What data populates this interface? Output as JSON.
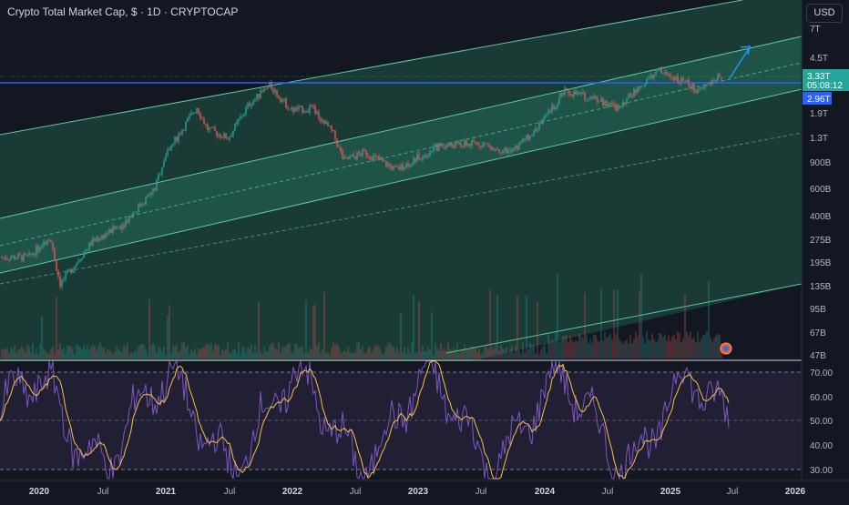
{
  "header": {
    "title": "Crypto Total Market Cap, $ · 1D · CRYPTOCAP",
    "currency_button": "USD"
  },
  "colors": {
    "background": "#131722",
    "channel_fill": "#1f4f45",
    "channel_line": "#5ec99a",
    "horizontal_line": "#2962ff",
    "candle_up": "#26a69a",
    "candle_down": "#ef5350",
    "rsi": "#7e57c2",
    "rsi_ma": "#f5c242",
    "arrow": "#2196f3"
  },
  "price_axis": {
    "ticks": [
      "7T",
      "4.5T",
      "1.9T",
      "1.3T",
      "900B",
      "600B",
      "400B",
      "275B",
      "195B",
      "135B",
      "95B",
      "67B",
      "47B"
    ],
    "labels": [
      {
        "text": "3.33T",
        "sub": "05:08:12",
        "color": "#26a69a"
      },
      {
        "text": "2.96T",
        "color": "#2962ff"
      }
    ]
  },
  "time_axis": {
    "ticks": [
      "2020",
      "Jul",
      "2021",
      "Jul",
      "2022",
      "Jul",
      "2023",
      "Jul",
      "2024",
      "Jul",
      "2025",
      "Jul",
      "2026"
    ]
  },
  "rsi_axis": {
    "ticks": [
      "70.00",
      "60.00",
      "50.00",
      "40.00",
      "30.00"
    ]
  },
  "chart_data": {
    "type": "candlestick",
    "title": "Crypto Total Market Cap, $ · 1D · CRYPTOCAP",
    "y_scale": "log",
    "x": [
      "2019-12",
      "2020-02",
      "2020-03",
      "2020-06",
      "2020-09",
      "2020-12",
      "2021-01",
      "2021-04",
      "2021-05",
      "2021-07",
      "2021-09",
      "2021-11",
      "2022-01",
      "2022-03",
      "2022-05",
      "2022-06",
      "2022-08",
      "2022-11",
      "2023-03",
      "2023-07",
      "2023-10",
      "2024-01",
      "2024-03",
      "2024-06",
      "2024-08",
      "2024-11",
      "2024-12",
      "2025-02",
      "2025-04",
      "2025-05",
      "2025-06"
    ],
    "close": [
      210,
      290,
      140,
      265,
      350,
      600,
      1000,
      2100,
      1500,
      1300,
      2200,
      2900,
      2000,
      2050,
      1400,
      920,
      1050,
      800,
      1150,
      1200,
      1050,
      1700,
      2650,
      2400,
      2050,
      3200,
      3600,
      3200,
      2650,
      3150,
      3330
    ],
    "rsi": {
      "upper": 70,
      "mid": 50,
      "lower": 30,
      "last": 52
    },
    "horizontal_level": "2.96T",
    "last_price": "3.33T"
  }
}
